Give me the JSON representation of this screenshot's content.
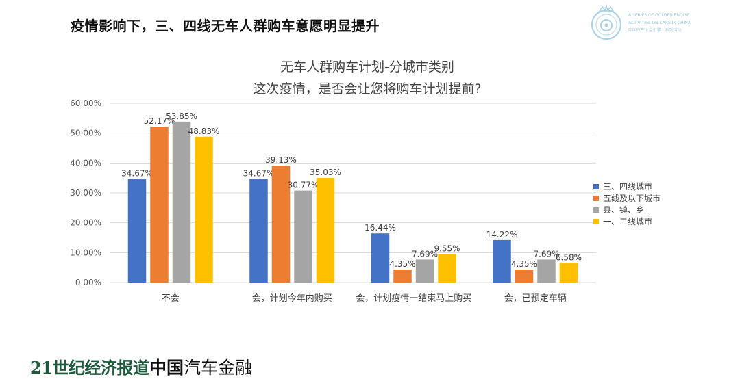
{
  "slide_title": "疫情影响下，三、四线无车人群购车意愿明显提升",
  "logo": {
    "lines": [
      "A SERIES OF GOLDEN ENGINE",
      "ACTIVITIES ON CARS IN CHINA",
      "中国汽车 | 金引擎 | 系列活动"
    ]
  },
  "footer": {
    "brand_1": "21世纪经济报道",
    "brand_2_strong": "中国",
    "brand_2_rest": "汽车金融"
  },
  "colors": {
    "s1": "#4472C4",
    "s2": "#ED7D31",
    "s3": "#A5A5A5",
    "s4": "#FFC000"
  },
  "chart_data": {
    "type": "bar",
    "title_line1": "无车人群购车计划-分城市类别",
    "title_line2": "这次疫情，是否会让您将购车计划提前?",
    "categories": [
      "不会",
      "会，计划今年内购买",
      "会，计划疫情一结束马上购买",
      "会，已预定车辆"
    ],
    "series": [
      {
        "name": "三、四线城市",
        "values": [
          34.67,
          34.67,
          16.44,
          14.22
        ],
        "labels": [
          "34.67%",
          "34.67%",
          "16.44%",
          "14.22%"
        ]
      },
      {
        "name": "五线及以下城市",
        "values": [
          52.17,
          39.13,
          4.35,
          4.35
        ],
        "labels": [
          "52.17%",
          "39.13%",
          "4.35%",
          "4.35%"
        ]
      },
      {
        "name": "县、镇、乡",
        "values": [
          53.85,
          30.77,
          7.69,
          7.69
        ],
        "labels": [
          "53.85%",
          "30.77%",
          "7.69%",
          "7.69%"
        ]
      },
      {
        "name": "一、二线城市",
        "values": [
          48.83,
          35.03,
          9.55,
          6.58
        ],
        "labels": [
          "48.83%",
          "35.03%",
          "9.55%",
          "6.58%"
        ]
      }
    ],
    "yticks": [
      "0.00%",
      "10.00%",
      "20.00%",
      "30.00%",
      "40.00%",
      "50.00%",
      "60.00%"
    ],
    "ylim": [
      0,
      60
    ],
    "grid": true,
    "legend_position": "right"
  }
}
